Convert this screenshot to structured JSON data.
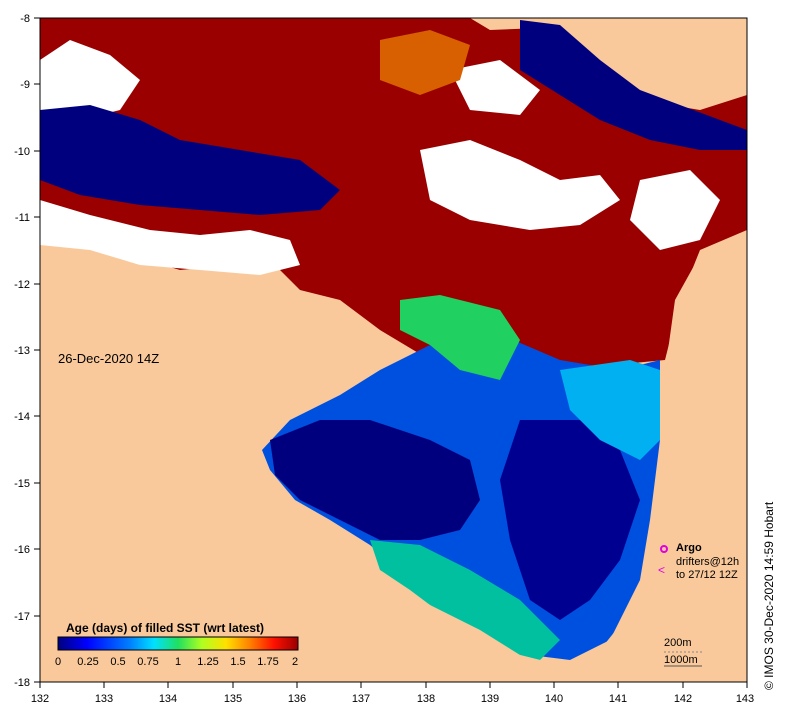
{
  "map": {
    "date_label": "26-Dec-2020 14Z",
    "credit": "© IMOS 30-Dec-2020 14:59 Hobart",
    "x_ticks": [
      "132",
      "133",
      "134",
      "135",
      "136",
      "137",
      "138",
      "139",
      "140",
      "141",
      "142",
      "143"
    ],
    "y_ticks": [
      "-8",
      "-9",
      "-10",
      "-11",
      "-12",
      "-13",
      "-14",
      "-15",
      "-16",
      "-17",
      "-18"
    ],
    "land_color": "#f9c99b",
    "no_data_color": "#ffffff"
  },
  "colorbar": {
    "title": "Age (days) of filled SST (wrt latest)",
    "ticks": [
      "0",
      "0.25",
      "0.5",
      "0.75",
      "1",
      "1.25",
      "1.5",
      "1.75",
      "2"
    ],
    "colors": [
      "#00007f",
      "#0000ff",
      "#0080ff",
      "#00e0ff",
      "#20e060",
      "#b0ff20",
      "#ffe000",
      "#ff8000",
      "#ff1000",
      "#9a0000"
    ]
  },
  "legend": {
    "argo": "Argo",
    "drifters_line1": "drifters@12h",
    "drifters_line2": "to 27/12 12Z"
  },
  "scale": {
    "contour_200": "200m",
    "contour_1000": "1000m"
  }
}
